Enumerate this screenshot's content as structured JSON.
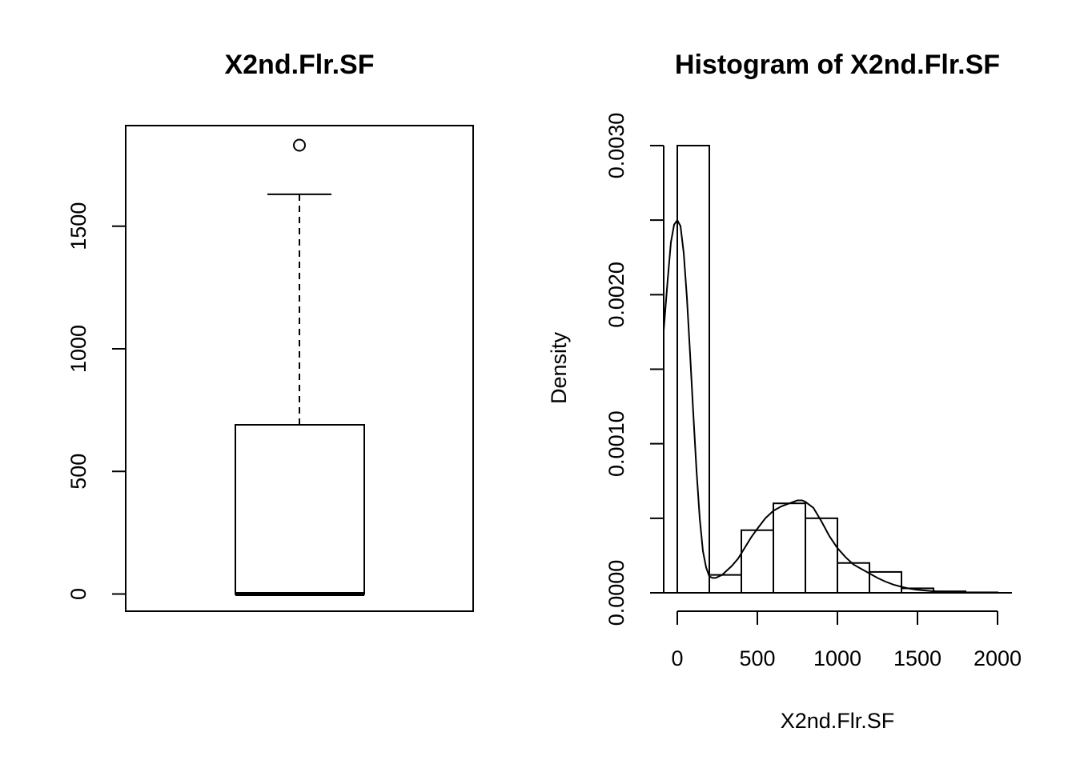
{
  "chart_data": [
    {
      "type": "boxplot",
      "title": "X2nd.Flr.SF",
      "ylabel": "",
      "xlabel": "",
      "ylim": [
        -70,
        1910
      ],
      "yticks": [
        0,
        500,
        1000,
        1500
      ],
      "stats": {
        "min": 0,
        "q1": 0,
        "median": 0,
        "q3": 690,
        "upper_whisker": 1630,
        "outliers": [
          1830
        ]
      }
    },
    {
      "type": "histogram",
      "title": "Histogram of X2nd.Flr.SF",
      "xlabel": "X2nd.Flr.SF",
      "ylabel": "Density",
      "xlim": [
        0,
        2000
      ],
      "ylim": [
        0,
        0.003
      ],
      "xticks": [
        0,
        500,
        1000,
        1500,
        2000
      ],
      "yticks": [
        0.0,
        0.0005,
        0.001,
        0.0015,
        0.002,
        0.0025,
        0.003
      ],
      "ytick_labels": [
        "0.0000",
        "",
        "0.0010",
        "",
        "0.0020",
        "",
        "0.0030"
      ],
      "bins": [
        {
          "x0": 0,
          "x1": 200,
          "density": 0.003
        },
        {
          "x0": 200,
          "x1": 400,
          "density": 0.00012
        },
        {
          "x0": 400,
          "x1": 600,
          "density": 0.00042
        },
        {
          "x0": 600,
          "x1": 800,
          "density": 0.0006
        },
        {
          "x0": 800,
          "x1": 1000,
          "density": 0.0005
        },
        {
          "x0": 1000,
          "x1": 1200,
          "density": 0.0002
        },
        {
          "x0": 1200,
          "x1": 1400,
          "density": 0.00014
        },
        {
          "x0": 1400,
          "x1": 1600,
          "density": 3e-05
        },
        {
          "x0": 1600,
          "x1": 1800,
          "density": 1e-05
        },
        {
          "x0": 1800,
          "x1": 2000,
          "density": 3e-06
        }
      ],
      "density_curve": {
        "x": [
          -85,
          -60,
          -40,
          -20,
          0,
          20,
          40,
          60,
          80,
          100,
          120,
          140,
          160,
          180,
          200,
          220,
          240,
          260,
          280,
          300,
          340,
          380,
          420,
          460,
          500,
          550,
          600,
          650,
          700,
          750,
          780,
          800,
          850,
          900,
          950,
          1000,
          1050,
          1100,
          1150,
          1200,
          1250,
          1300,
          1350,
          1400,
          1450,
          1500,
          1600,
          1700,
          1800,
          1900,
          2000
        ],
        "y": [
          0.00176,
          0.0021,
          0.00235,
          0.00247,
          0.0025,
          0.00246,
          0.00228,
          0.00198,
          0.0016,
          0.0012,
          0.00082,
          0.0005,
          0.00028,
          0.00017,
          0.00011,
          0.0001,
          0.0001,
          0.00011,
          0.00012,
          0.00014,
          0.00018,
          0.00023,
          0.0003,
          0.00037,
          0.00043,
          0.0005,
          0.00055,
          0.00058,
          0.0006,
          0.00062,
          0.00062,
          0.00061,
          0.00057,
          0.00048,
          0.00038,
          0.0003,
          0.00024,
          0.00019,
          0.00016,
          0.00013,
          0.0001,
          7.5e-05,
          5.5e-05,
          4e-05,
          2.8e-05,
          2e-05,
          1e-05,
          4e-06,
          2e-06,
          1e-06,
          5e-07
        ]
      }
    }
  ]
}
